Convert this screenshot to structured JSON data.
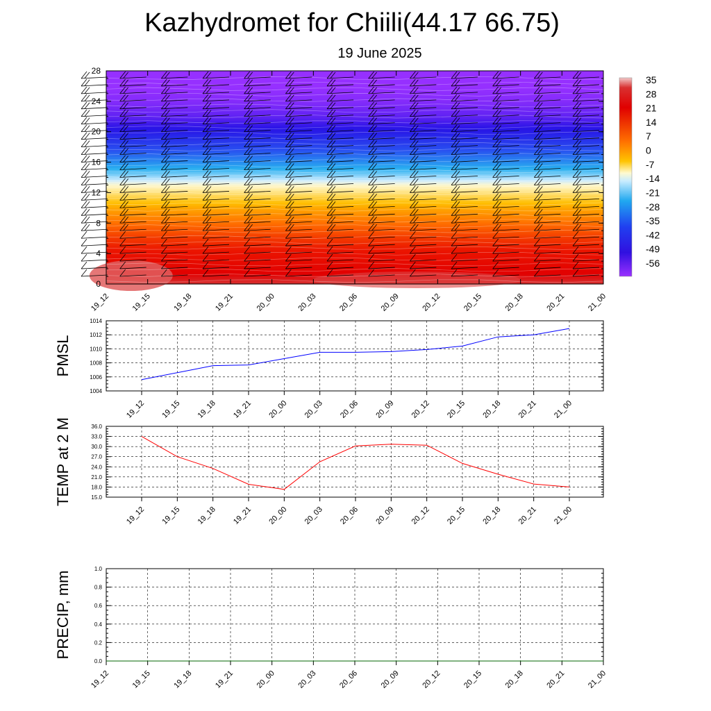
{
  "title": "Kazhydromet for Chiili(44.17 66.75)",
  "subtitle": "19 June 2025",
  "colors": {
    "pmsl_line": "#0000ff",
    "temp_line": "#ff0000",
    "precip_line": "#006400"
  },
  "time_labels": [
    "19_12",
    "19_15",
    "19_18",
    "19_21",
    "20_00",
    "20_03",
    "20_06",
    "20_09",
    "20_12",
    "20_15",
    "20_18",
    "20_21",
    "21_00"
  ],
  "chart_data": [
    {
      "type": "heatmap",
      "title": "Kazhydromet for Chiili(44.17 66.75)",
      "subtitle": "19 June 2025",
      "x": [
        "19_12",
        "19_15",
        "19_18",
        "19_21",
        "20_00",
        "20_03",
        "20_06",
        "20_09",
        "20_12",
        "20_15",
        "20_18",
        "20_21",
        "21_00"
      ],
      "ylim": [
        0,
        28
      ],
      "yticks": [
        0,
        4,
        8,
        12,
        16,
        20,
        24,
        28
      ],
      "colorbar_labels": [
        "35",
        "28",
        "21",
        "14",
        "7",
        "0",
        "-7",
        "-14",
        "-21",
        "-28",
        "-35",
        "-42",
        "-49",
        "-56"
      ],
      "colorbar_values": [
        35,
        28,
        21,
        14,
        7,
        0,
        -7,
        -14,
        -21,
        -28,
        -35,
        -42,
        -49,
        -56
      ],
      "profile_levels": [
        0,
        2,
        4,
        6,
        8,
        10,
        12,
        13,
        14,
        16,
        18,
        20,
        22,
        24,
        26,
        28
      ],
      "profile_temps": [
        33,
        26,
        21,
        16,
        10,
        3,
        -6,
        -10,
        -16,
        -26,
        -36,
        -46,
        -54,
        -58,
        -60,
        -62
      ],
      "wind_barbs": true
    },
    {
      "type": "line",
      "ylabel": "PMSL",
      "x": [
        "19_12",
        "19_15",
        "19_18",
        "19_21",
        "20_00",
        "20_03",
        "20_06",
        "20_09",
        "20_12",
        "20_15",
        "20_18",
        "20_21",
        "21_00"
      ],
      "values": [
        1005.6,
        1006.6,
        1007.6,
        1007.7,
        1008.6,
        1009.5,
        1009.5,
        1009.6,
        1009.9,
        1010.4,
        1011.7,
        1012.0,
        1012.9
      ],
      "ylim": [
        1004,
        1014
      ],
      "yticks": [
        "1004",
        "1006",
        "1008",
        "1010",
        "1012",
        "1014"
      ],
      "grid": true
    },
    {
      "type": "line",
      "ylabel": "TEMP at 2 M",
      "x": [
        "19_12",
        "19_15",
        "19_18",
        "19_21",
        "20_00",
        "20_03",
        "20_06",
        "20_09",
        "20_12",
        "20_15",
        "20_18",
        "20_21",
        "21_00"
      ],
      "values": [
        33.0,
        27.0,
        23.5,
        18.8,
        17.3,
        25.5,
        30.2,
        30.7,
        30.4,
        25.0,
        21.8,
        18.9,
        18.0
      ],
      "ylim": [
        15,
        36
      ],
      "yticks": [
        "15.0",
        "18.0",
        "21.0",
        "24.0",
        "27.0",
        "30.0",
        "33.0",
        "36.0"
      ],
      "grid": true
    },
    {
      "type": "line",
      "ylabel": "PRECIP, mm",
      "x": [
        "19_12",
        "19_15",
        "19_18",
        "19_21",
        "20_00",
        "20_03",
        "20_06",
        "20_09",
        "20_12",
        "20_15",
        "20_18",
        "20_21",
        "21_00"
      ],
      "values": [
        0,
        0,
        0,
        0,
        0,
        0,
        0,
        0,
        0,
        0,
        0,
        0,
        0
      ],
      "ylim": [
        0,
        1
      ],
      "yticks": [
        "0.0",
        "0.2",
        "0.4",
        "0.6",
        "0.8",
        "1.0"
      ],
      "grid": true
    }
  ]
}
